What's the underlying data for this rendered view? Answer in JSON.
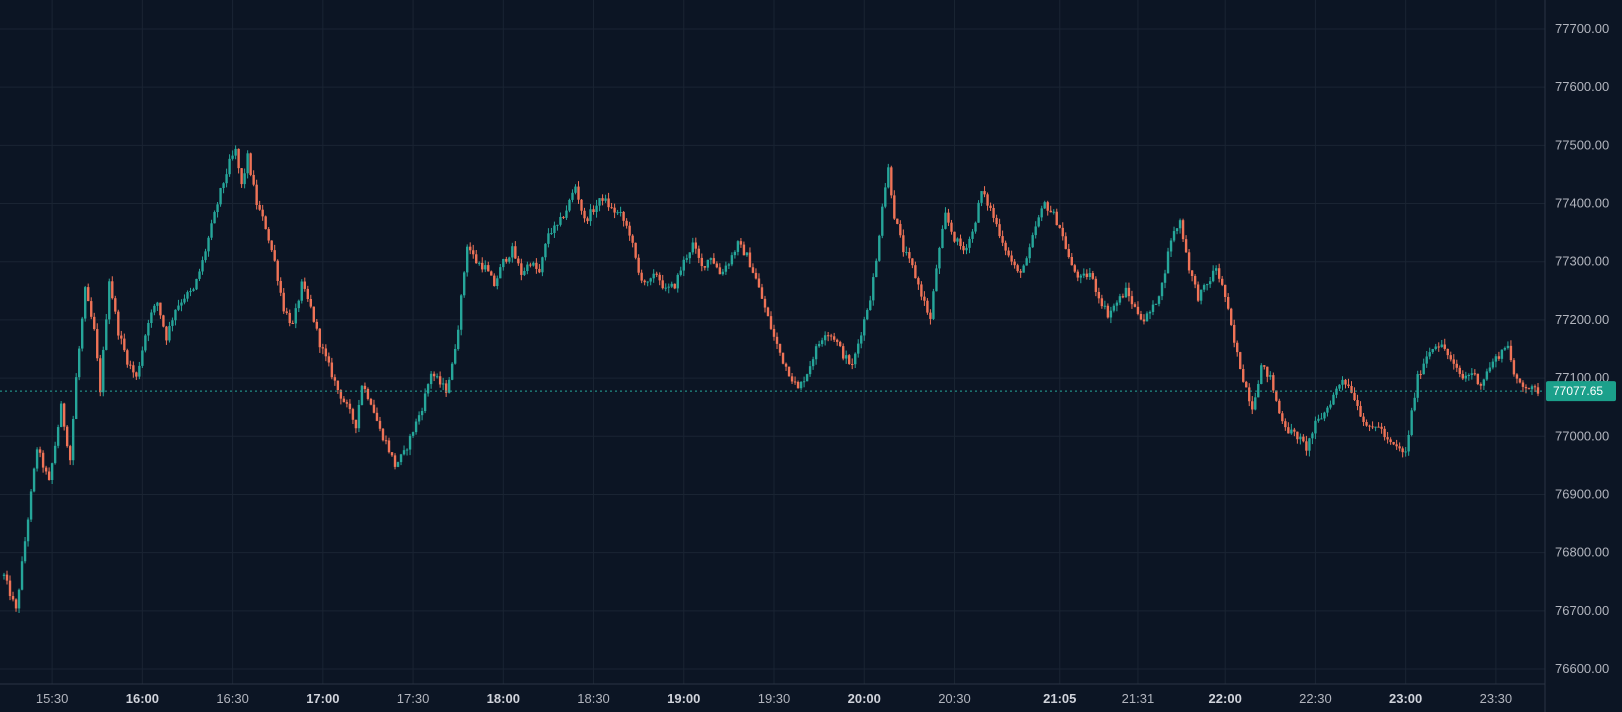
{
  "chart_data": {
    "type": "candlestick",
    "timeframe_note": "1-minute candles",
    "y_axis": {
      "min": 76580,
      "max": 77740,
      "ticks": [
        "76600.00",
        "76700.00",
        "76800.00",
        "76900.00",
        "77000.00",
        "77100.00",
        "77200.00",
        "77300.00",
        "77400.00",
        "77500.00",
        "77600.00",
        "77700.00"
      ]
    },
    "x_axis": {
      "start": "15:14",
      "end": "23:44",
      "ticks": [
        {
          "label": "15:30",
          "time": "15:30",
          "major": false
        },
        {
          "label": "16:00",
          "time": "16:00",
          "major": true
        },
        {
          "label": "16:30",
          "time": "16:30",
          "major": false
        },
        {
          "label": "17:00",
          "time": "17:00",
          "major": true
        },
        {
          "label": "17:30",
          "time": "17:30",
          "major": false
        },
        {
          "label": "18:00",
          "time": "18:00",
          "major": true
        },
        {
          "label": "18:30",
          "time": "18:30",
          "major": false
        },
        {
          "label": "19:00",
          "time": "19:00",
          "major": true
        },
        {
          "label": "19:30",
          "time": "19:30",
          "major": false
        },
        {
          "label": "20:00",
          "time": "20:00",
          "major": true
        },
        {
          "label": "20:30",
          "time": "20:30",
          "major": false
        },
        {
          "label": "21:05",
          "time": "21:05",
          "major": true
        },
        {
          "label": "21:31",
          "time": "21:31",
          "major": false
        },
        {
          "label": "22:00",
          "time": "22:00",
          "major": true
        },
        {
          "label": "22:30",
          "time": "22:30",
          "major": false
        },
        {
          "label": "23:00",
          "time": "23:00",
          "major": true
        },
        {
          "label": "23:30",
          "time": "23:30",
          "major": false
        }
      ]
    },
    "last_price": 77077.65,
    "last_price_label": "77077.65",
    "grid": true,
    "close_path": [
      [
        "15:14",
        76760
      ],
      [
        "15:18",
        76700
      ],
      [
        "15:22",
        76860
      ],
      [
        "15:25",
        76980
      ],
      [
        "15:29",
        76920
      ],
      [
        "15:33",
        77050
      ],
      [
        "15:36",
        76960
      ],
      [
        "15:38",
        77100
      ],
      [
        "15:41",
        77250
      ],
      [
        "15:44",
        77180
      ],
      [
        "15:46",
        77080
      ],
      [
        "15:49",
        77270
      ],
      [
        "15:52",
        77180
      ],
      [
        "15:55",
        77130
      ],
      [
        "15:58",
        77100
      ],
      [
        "16:02",
        77200
      ],
      [
        "16:05",
        77230
      ],
      [
        "16:08",
        77170
      ],
      [
        "16:11",
        77220
      ],
      [
        "16:14",
        77240
      ],
      [
        "16:17",
        77250
      ],
      [
        "16:20",
        77300
      ],
      [
        "16:23",
        77360
      ],
      [
        "16:26",
        77420
      ],
      [
        "16:29",
        77470
      ],
      [
        "16:31",
        77490
      ],
      [
        "16:33",
        77430
      ],
      [
        "16:35",
        77480
      ],
      [
        "16:38",
        77400
      ],
      [
        "16:41",
        77360
      ],
      [
        "16:44",
        77300
      ],
      [
        "16:47",
        77220
      ],
      [
        "16:50",
        77190
      ],
      [
        "16:53",
        77260
      ],
      [
        "16:56",
        77220
      ],
      [
        "16:59",
        77160
      ],
      [
        "17:02",
        77120
      ],
      [
        "17:05",
        77080
      ],
      [
        "17:08",
        77050
      ],
      [
        "17:11",
        77020
      ],
      [
        "17:13",
        77090
      ],
      [
        "17:16",
        77060
      ],
      [
        "17:19",
        77010
      ],
      [
        "17:21",
        76990
      ],
      [
        "17:24",
        76950
      ],
      [
        "17:27",
        76970
      ],
      [
        "17:30",
        77010
      ],
      [
        "17:33",
        77050
      ],
      [
        "17:36",
        77110
      ],
      [
        "17:39",
        77090
      ],
      [
        "17:41",
        77080
      ],
      [
        "17:43",
        77120
      ],
      [
        "17:45",
        77190
      ],
      [
        "17:48",
        77330
      ],
      [
        "17:51",
        77300
      ],
      [
        "17:54",
        77290
      ],
      [
        "17:57",
        77260
      ],
      [
        "18:00",
        77300
      ],
      [
        "18:03",
        77320
      ],
      [
        "18:06",
        77280
      ],
      [
        "18:09",
        77300
      ],
      [
        "18:12",
        77280
      ],
      [
        "18:15",
        77350
      ],
      [
        "18:18",
        77360
      ],
      [
        "18:21",
        77390
      ],
      [
        "18:24",
        77430
      ],
      [
        "18:27",
        77370
      ],
      [
        "18:30",
        77390
      ],
      [
        "18:33",
        77410
      ],
      [
        "18:36",
        77390
      ],
      [
        "18:39",
        77380
      ],
      [
        "18:42",
        77350
      ],
      [
        "18:45",
        77280
      ],
      [
        "18:48",
        77260
      ],
      [
        "18:51",
        77280
      ],
      [
        "18:54",
        77250
      ],
      [
        "18:57",
        77260
      ],
      [
        "19:00",
        77300
      ],
      [
        "19:03",
        77330
      ],
      [
        "19:06",
        77290
      ],
      [
        "19:09",
        77310
      ],
      [
        "19:12",
        77280
      ],
      [
        "19:15",
        77300
      ],
      [
        "19:18",
        77330
      ],
      [
        "19:21",
        77310
      ],
      [
        "19:24",
        77270
      ],
      [
        "19:27",
        77220
      ],
      [
        "19:30",
        77170
      ],
      [
        "19:33",
        77130
      ],
      [
        "19:36",
        77100
      ],
      [
        "19:38",
        77080
      ],
      [
        "19:41",
        77110
      ],
      [
        "19:44",
        77150
      ],
      [
        "19:47",
        77180
      ],
      [
        "19:50",
        77170
      ],
      [
        "19:53",
        77140
      ],
      [
        "19:56",
        77120
      ],
      [
        "19:58",
        77160
      ],
      [
        "20:02",
        77240
      ],
      [
        "20:04",
        77300
      ],
      [
        "20:06",
        77400
      ],
      [
        "20:08",
        77460
      ],
      [
        "20:10",
        77380
      ],
      [
        "20:13",
        77320
      ],
      [
        "20:16",
        77290
      ],
      [
        "20:18",
        77260
      ],
      [
        "20:20",
        77230
      ],
      [
        "20:22",
        77200
      ],
      [
        "20:24",
        77290
      ],
      [
        "20:27",
        77380
      ],
      [
        "20:30",
        77340
      ],
      [
        "20:33",
        77320
      ],
      [
        "20:36",
        77350
      ],
      [
        "20:39",
        77420
      ],
      [
        "20:42",
        77390
      ],
      [
        "20:45",
        77350
      ],
      [
        "20:48",
        77310
      ],
      [
        "20:51",
        77280
      ],
      [
        "20:54",
        77300
      ],
      [
        "20:57",
        77360
      ],
      [
        "21:00",
        77400
      ],
      [
        "21:03",
        77380
      ],
      [
        "21:05",
        77360
      ],
      [
        "21:09",
        77290
      ],
      [
        "21:12",
        77270
      ],
      [
        "21:15",
        77280
      ],
      [
        "21:18",
        77240
      ],
      [
        "21:21",
        77210
      ],
      [
        "21:24",
        77230
      ],
      [
        "21:27",
        77250
      ],
      [
        "21:30",
        77220
      ],
      [
        "21:33",
        77200
      ],
      [
        "21:36",
        77220
      ],
      [
        "21:39",
        77260
      ],
      [
        "21:42",
        77340
      ],
      [
        "21:45",
        77370
      ],
      [
        "21:48",
        77290
      ],
      [
        "21:51",
        77240
      ],
      [
        "21:54",
        77260
      ],
      [
        "21:57",
        77290
      ],
      [
        "22:00",
        77240
      ],
      [
        "22:03",
        77160
      ],
      [
        "22:06",
        77100
      ],
      [
        "22:09",
        77050
      ],
      [
        "22:12",
        77120
      ],
      [
        "22:15",
        77100
      ],
      [
        "22:18",
        77040
      ],
      [
        "22:21",
        77010
      ],
      [
        "22:24",
        77000
      ],
      [
        "22:27",
        76980
      ],
      [
        "22:30",
        77020
      ],
      [
        "22:33",
        77040
      ],
      [
        "22:36",
        77070
      ],
      [
        "22:39",
        77100
      ],
      [
        "22:42",
        77080
      ],
      [
        "22:45",
        77040
      ],
      [
        "22:48",
        77010
      ],
      [
        "22:51",
        77020
      ],
      [
        "22:54",
        76990
      ],
      [
        "22:57",
        76980
      ],
      [
        "23:00",
        76970
      ],
      [
        "23:02",
        77040
      ],
      [
        "23:04",
        77100
      ],
      [
        "23:07",
        77140
      ],
      [
        "23:10",
        77160
      ],
      [
        "23:13",
        77150
      ],
      [
        "23:16",
        77120
      ],
      [
        "23:19",
        77100
      ],
      [
        "23:22",
        77110
      ],
      [
        "23:25",
        77090
      ],
      [
        "23:28",
        77120
      ],
      [
        "23:31",
        77140
      ],
      [
        "23:34",
        77160
      ],
      [
        "23:36",
        77100
      ],
      [
        "23:39",
        77090
      ],
      [
        "23:42",
        77080
      ],
      [
        "23:44",
        77078
      ]
    ]
  },
  "colors": {
    "background": "#0c1524",
    "grid": "#1a2433",
    "up": "#26a69a",
    "down": "#ef7357",
    "axis_text": "#b2b5be",
    "axis_text_major": "#d1d4dc",
    "price_line": "#26a69a",
    "price_tag": "#1ba08b"
  }
}
